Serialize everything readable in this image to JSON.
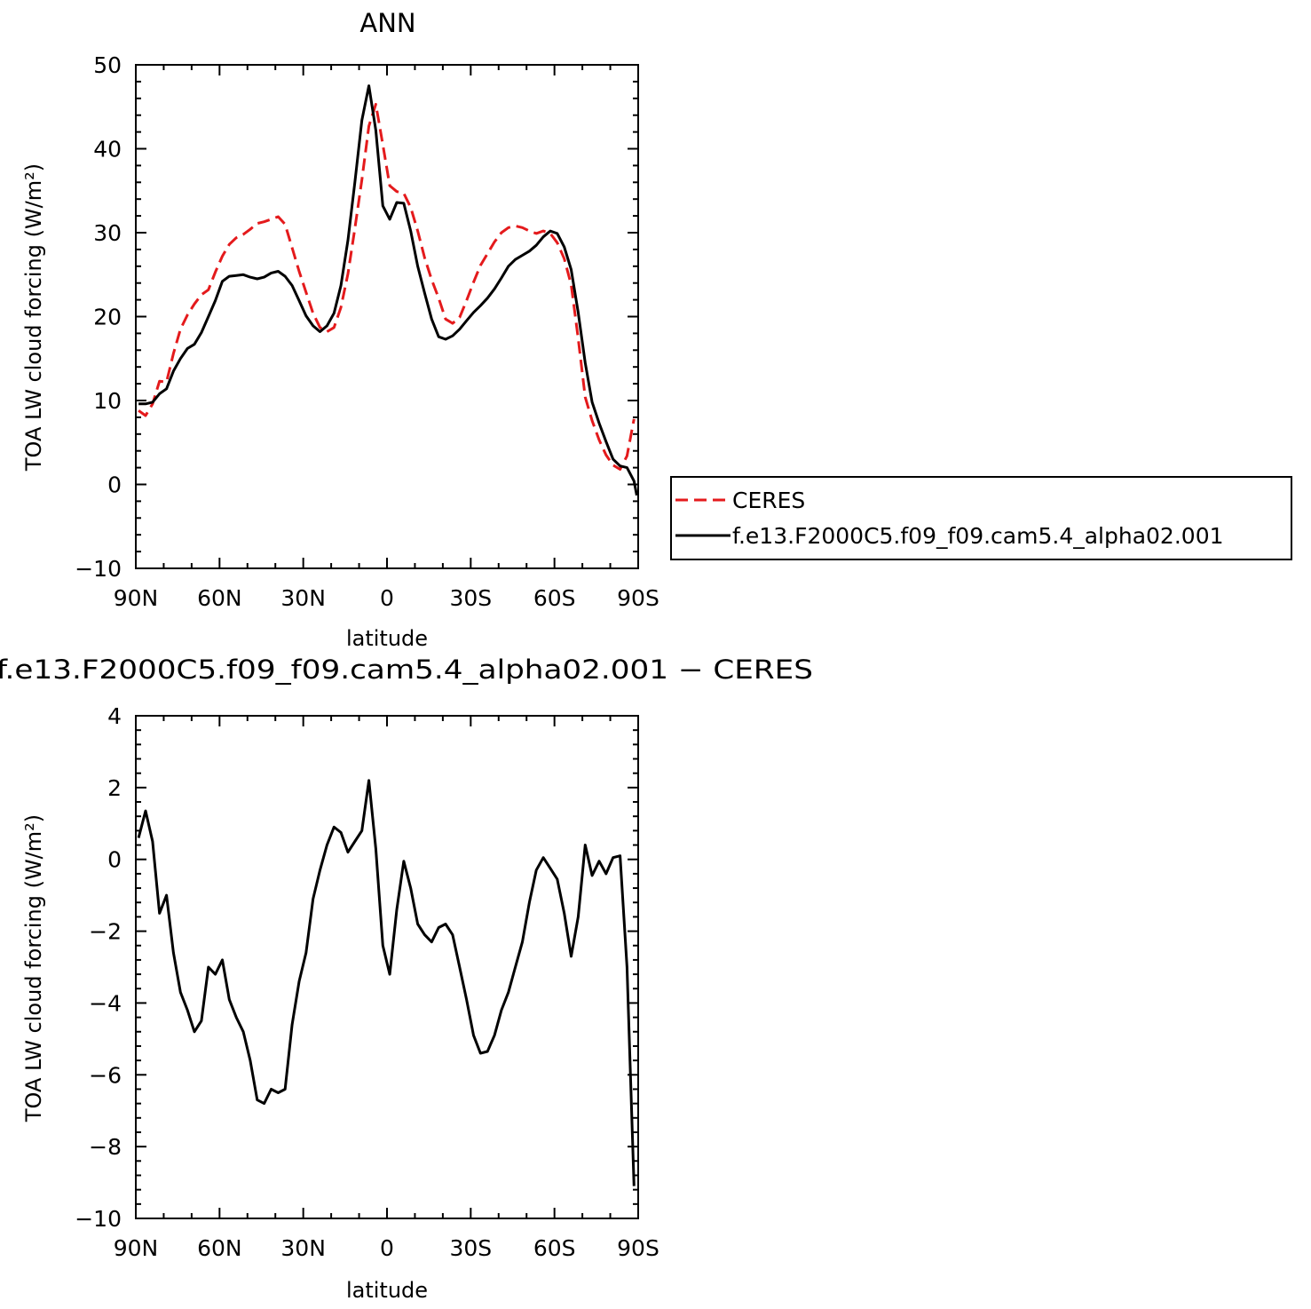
{
  "chart_data": [
    {
      "type": "line",
      "title": "ANN",
      "xlabel": "latitude",
      "ylabel": "TOA LW cloud forcing (W/m²)",
      "ylim": [
        -10,
        50
      ],
      "xlim": [
        90,
        -90
      ],
      "xticks": [
        {
          "value": 90,
          "label": "90N"
        },
        {
          "value": 60,
          "label": "60N"
        },
        {
          "value": 30,
          "label": "30N"
        },
        {
          "value": 0,
          "label": "0"
        },
        {
          "value": -30,
          "label": "30S"
        },
        {
          "value": -60,
          "label": "60S"
        },
        {
          "value": -90,
          "label": "90S"
        }
      ],
      "yticks": [
        {
          "value": 50,
          "label": "50"
        },
        {
          "value": 40,
          "label": "40"
        },
        {
          "value": 30,
          "label": "30"
        },
        {
          "value": 20,
          "label": "20"
        },
        {
          "value": 10,
          "label": "10"
        },
        {
          "value": 0,
          "label": "0"
        },
        {
          "value": -10,
          "label": "−10"
        }
      ],
      "legend_position": "right",
      "series": [
        {
          "name": "CERES",
          "color": "#e41a1c",
          "style": "dashed",
          "points": [
            [
              89,
              8.8
            ],
            [
              86.5,
              8.2
            ],
            [
              84,
              9.6
            ],
            [
              81.5,
              12.3
            ],
            [
              79,
              12.2
            ],
            [
              76.5,
              15.6
            ],
            [
              74,
              18.5
            ],
            [
              71.5,
              20.2
            ],
            [
              69,
              21.5
            ],
            [
              66.5,
              22.6
            ],
            [
              64,
              23.2
            ],
            [
              61.5,
              25.3
            ],
            [
              59,
              27.2
            ],
            [
              56.5,
              28.6
            ],
            [
              54,
              29.4
            ],
            [
              51.5,
              29.8
            ],
            [
              49,
              30.4
            ],
            [
              46.5,
              31.1
            ],
            [
              44,
              31.3
            ],
            [
              41.5,
              31.6
            ],
            [
              39,
              31.9
            ],
            [
              36.5,
              31.0
            ],
            [
              34,
              28.2
            ],
            [
              31.5,
              25.4
            ],
            [
              29,
              22.9
            ],
            [
              26.5,
              20.4
            ],
            [
              24,
              18.7
            ],
            [
              21.5,
              18.2
            ],
            [
              19,
              18.7
            ],
            [
              16.5,
              21.1
            ],
            [
              14,
              25.1
            ],
            [
              11.5,
              30.5
            ],
            [
              9,
              36.3
            ],
            [
              6.5,
              42.7
            ],
            [
              4,
              45.3
            ],
            [
              1.5,
              40.5
            ],
            [
              -1,
              35.6
            ],
            [
              -3.5,
              34.9
            ],
            [
              -6,
              34.7
            ],
            [
              -8.5,
              33.0
            ],
            [
              -11,
              30.2
            ],
            [
              -13.5,
              27.0
            ],
            [
              -16,
              24.4
            ],
            [
              -18.5,
              22.2
            ],
            [
              -21,
              19.7
            ],
            [
              -23.5,
              19.2
            ],
            [
              -26,
              19.9
            ],
            [
              -28.5,
              21.9
            ],
            [
              -31,
              24.1
            ],
            [
              -33.5,
              26.1
            ],
            [
              -36,
              27.5
            ],
            [
              -38.5,
              28.9
            ],
            [
              -41,
              30.0
            ],
            [
              -43.5,
              30.6
            ],
            [
              -46,
              30.8
            ],
            [
              -48.5,
              30.6
            ],
            [
              -51,
              30.2
            ],
            [
              -53.5,
              29.9
            ],
            [
              -56,
              30.2
            ],
            [
              -58.5,
              29.9
            ],
            [
              -61,
              28.8
            ],
            [
              -63.5,
              26.9
            ],
            [
              -66,
              23.8
            ],
            [
              -68.5,
              17.4
            ],
            [
              -71,
              10.4
            ],
            [
              -73.5,
              7.6
            ],
            [
              -76,
              5.3
            ],
            [
              -78.5,
              3.5
            ],
            [
              -81,
              2.3
            ],
            [
              -83.5,
              1.8
            ],
            [
              -86,
              3.4
            ],
            [
              -88.5,
              7.8
            ]
          ]
        },
        {
          "name": "f.e13.F2000C5.f09_f09.cam5.4_alpha02.001",
          "color": "#000000",
          "style": "solid",
          "points": [
            [
              89,
              9.6
            ],
            [
              86.5,
              9.6
            ],
            [
              84,
              9.8
            ],
            [
              81.5,
              10.8
            ],
            [
              79,
              11.4
            ],
            [
              76.5,
              13.5
            ],
            [
              74,
              15.0
            ],
            [
              71.5,
              16.2
            ],
            [
              69,
              16.7
            ],
            [
              66.5,
              18.1
            ],
            [
              64,
              20.0
            ],
            [
              61.5,
              21.9
            ],
            [
              59,
              24.2
            ],
            [
              56.5,
              24.8
            ],
            [
              54,
              24.9
            ],
            [
              51.5,
              25.0
            ],
            [
              49,
              24.7
            ],
            [
              46.5,
              24.5
            ],
            [
              44,
              24.7
            ],
            [
              41.5,
              25.2
            ],
            [
              39,
              25.4
            ],
            [
              36.5,
              24.8
            ],
            [
              34,
              23.7
            ],
            [
              31.5,
              21.9
            ],
            [
              29,
              20.1
            ],
            [
              26.5,
              18.9
            ],
            [
              24,
              18.2
            ],
            [
              21.5,
              18.9
            ],
            [
              19,
              20.4
            ],
            [
              16.5,
              23.7
            ],
            [
              14,
              29.1
            ],
            [
              11.5,
              36.0
            ],
            [
              9,
              43.4
            ],
            [
              6.5,
              47.5
            ],
            [
              4,
              42.2
            ],
            [
              1.5,
              33.2
            ],
            [
              -1,
              31.6
            ],
            [
              -3.5,
              33.6
            ],
            [
              -6,
              33.5
            ],
            [
              -8.5,
              30.2
            ],
            [
              -11,
              26.0
            ],
            [
              -13.5,
              22.8
            ],
            [
              -16,
              19.7
            ],
            [
              -18.5,
              17.6
            ],
            [
              -21,
              17.3
            ],
            [
              -23.5,
              17.7
            ],
            [
              -26,
              18.5
            ],
            [
              -28.5,
              19.5
            ],
            [
              -31,
              20.5
            ],
            [
              -33.5,
              21.3
            ],
            [
              -36,
              22.2
            ],
            [
              -38.5,
              23.3
            ],
            [
              -41,
              24.6
            ],
            [
              -43.5,
              26.0
            ],
            [
              -46,
              26.8
            ],
            [
              -48.5,
              27.3
            ],
            [
              -51,
              27.8
            ],
            [
              -53.5,
              28.5
            ],
            [
              -56,
              29.5
            ],
            [
              -58.5,
              30.2
            ],
            [
              -61,
              29.9
            ],
            [
              -63.5,
              28.3
            ],
            [
              -66,
              25.6
            ],
            [
              -68.5,
              20.5
            ],
            [
              -71,
              14.5
            ],
            [
              -73.5,
              9.8
            ],
            [
              -76,
              7.3
            ],
            [
              -78.5,
              5.1
            ],
            [
              -81,
              3.0
            ],
            [
              -83.5,
              2.2
            ],
            [
              -86,
              2.0
            ],
            [
              -88.5,
              0.4
            ],
            [
              -89.5,
              -1.3
            ]
          ]
        }
      ]
    },
    {
      "type": "line",
      "title": "f.e13.F2000C5.f09_f09.cam5.4_alpha02.001 − CERES",
      "xlabel": "latitude",
      "ylabel": "TOA LW cloud forcing (W/m²)",
      "ylim": [
        -10,
        4
      ],
      "xlim": [
        90,
        -90
      ],
      "xticks": [
        {
          "value": 90,
          "label": "90N"
        },
        {
          "value": 60,
          "label": "60N"
        },
        {
          "value": 30,
          "label": "30N"
        },
        {
          "value": 0,
          "label": "0"
        },
        {
          "value": -30,
          "label": "30S"
        },
        {
          "value": -60,
          "label": "60S"
        },
        {
          "value": -90,
          "label": "90S"
        }
      ],
      "yticks": [
        {
          "value": 4,
          "label": "4"
        },
        {
          "value": 2,
          "label": "2"
        },
        {
          "value": 0,
          "label": "0"
        },
        {
          "value": -2,
          "label": "−2"
        },
        {
          "value": -4,
          "label": "−4"
        },
        {
          "value": -6,
          "label": "−6"
        },
        {
          "value": -8,
          "label": "−8"
        },
        {
          "value": -10,
          "label": "−10"
        }
      ],
      "series": [
        {
          "name": "",
          "color": "#000000",
          "style": "solid",
          "points": [
            [
              89,
              0.6
            ],
            [
              86.5,
              1.35
            ],
            [
              84,
              0.5
            ],
            [
              81.5,
              -1.5
            ],
            [
              79,
              -1.0
            ],
            [
              76.5,
              -2.6
            ],
            [
              74,
              -3.7
            ],
            [
              71.5,
              -4.2
            ],
            [
              69,
              -4.8
            ],
            [
              66.5,
              -4.5
            ],
            [
              64,
              -3.0
            ],
            [
              61.5,
              -3.2
            ],
            [
              59,
              -2.8
            ],
            [
              56.5,
              -3.9
            ],
            [
              54,
              -4.4
            ],
            [
              51.5,
              -4.8
            ],
            [
              49,
              -5.6
            ],
            [
              46.5,
              -6.7
            ],
            [
              44,
              -6.8
            ],
            [
              41.5,
              -6.4
            ],
            [
              39,
              -6.5
            ],
            [
              36.5,
              -6.4
            ],
            [
              34,
              -4.6
            ],
            [
              31.5,
              -3.4
            ],
            [
              29,
              -2.6
            ],
            [
              26.5,
              -1.1
            ],
            [
              24,
              -0.3
            ],
            [
              21.5,
              0.4
            ],
            [
              19,
              0.9
            ],
            [
              16.5,
              0.75
            ],
            [
              14,
              0.2
            ],
            [
              11.5,
              0.5
            ],
            [
              9,
              0.8
            ],
            [
              6.5,
              2.2
            ],
            [
              4,
              0.3
            ],
            [
              1.5,
              -2.4
            ],
            [
              -1,
              -3.2
            ],
            [
              -3.5,
              -1.4
            ],
            [
              -6,
              -0.05
            ],
            [
              -8.5,
              -0.8
            ],
            [
              -11,
              -1.8
            ],
            [
              -13.5,
              -2.1
            ],
            [
              -16,
              -2.3
            ],
            [
              -18.5,
              -1.9
            ],
            [
              -21,
              -1.8
            ],
            [
              -23.5,
              -2.1
            ],
            [
              -26,
              -3.0
            ],
            [
              -28.5,
              -3.9
            ],
            [
              -31,
              -4.9
            ],
            [
              -33.5,
              -5.4
            ],
            [
              -36,
              -5.35
            ],
            [
              -38.5,
              -4.9
            ],
            [
              -41,
              -4.2
            ],
            [
              -43.5,
              -3.7
            ],
            [
              -46,
              -3.0
            ],
            [
              -48.5,
              -2.3
            ],
            [
              -51,
              -1.2
            ],
            [
              -53.5,
              -0.3
            ],
            [
              -56,
              0.05
            ],
            [
              -58.5,
              -0.25
            ],
            [
              -61,
              -0.55
            ],
            [
              -63.5,
              -1.5
            ],
            [
              -66,
              -2.7
            ],
            [
              -68.5,
              -1.6
            ],
            [
              -71,
              0.4
            ],
            [
              -73.5,
              -0.45
            ],
            [
              -76,
              -0.05
            ],
            [
              -78.5,
              -0.4
            ],
            [
              -81,
              0.05
            ],
            [
              -83.5,
              0.1
            ],
            [
              -86,
              -3.0
            ],
            [
              -88.5,
              -9.1
            ]
          ]
        }
      ]
    }
  ]
}
